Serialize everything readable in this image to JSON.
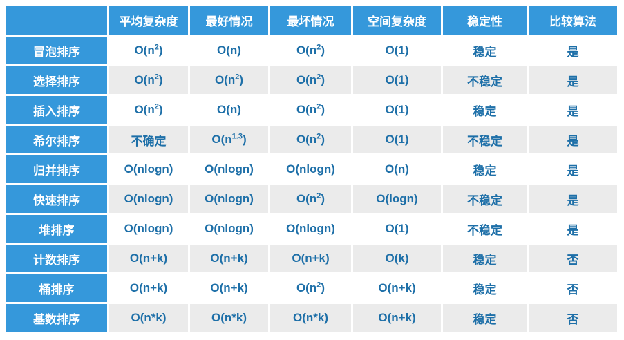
{
  "colors": {
    "header_blue": "#3598db",
    "cell_text": "#1d6fa8",
    "row_alt_gray": "#ebebeb",
    "row_white": "#ffffff",
    "page_background": "#ffffff"
  },
  "chart_data": {
    "type": "table",
    "title": "",
    "columns": [
      "",
      "平均复杂度",
      "最好情况",
      "最坏情况",
      "空间复杂度",
      "稳定性",
      "比较算法"
    ],
    "rows": [
      {
        "label": "冒泡排序",
        "cells": [
          "O(n^2)",
          "O(n)",
          "O(n^2)",
          "O(1)",
          "稳定",
          "是"
        ]
      },
      {
        "label": "选择排序",
        "cells": [
          "O(n^2)",
          "O(n^2)",
          "O(n^2)",
          "O(1)",
          "不稳定",
          "是"
        ]
      },
      {
        "label": "插入排序",
        "cells": [
          "O(n^2)",
          "O(n)",
          "O(n^2)",
          "O(1)",
          "稳定",
          "是"
        ]
      },
      {
        "label": "希尔排序",
        "cells": [
          "不确定",
          "O(n^1.3)",
          "O(n^2)",
          "O(1)",
          "不稳定",
          "是"
        ]
      },
      {
        "label": "归并排序",
        "cells": [
          "O(nlogn)",
          "O(nlogn)",
          "O(nlogn)",
          "O(n)",
          "稳定",
          "是"
        ]
      },
      {
        "label": "快速排序",
        "cells": [
          "O(nlogn)",
          "O(nlogn)",
          "O(n^2)",
          "O(logn)",
          "不稳定",
          "是"
        ]
      },
      {
        "label": "堆排序",
        "cells": [
          "O(nlogn)",
          "O(nlogn)",
          "O(nlogn)",
          "O(1)",
          "不稳定",
          "是"
        ]
      },
      {
        "label": "计数排序",
        "cells": [
          "O(n+k)",
          "O(n+k)",
          "O(n+k)",
          "O(k)",
          "稳定",
          "否"
        ]
      },
      {
        "label": "桶排序",
        "cells": [
          "O(n+k)",
          "O(n+k)",
          "O(n^2)",
          "O(n+k)",
          "稳定",
          "否"
        ]
      },
      {
        "label": "基数排序",
        "cells": [
          "O(n*k)",
          "O(n*k)",
          "O(n*k)",
          "O(n+k)",
          "稳定",
          "否"
        ]
      }
    ]
  }
}
